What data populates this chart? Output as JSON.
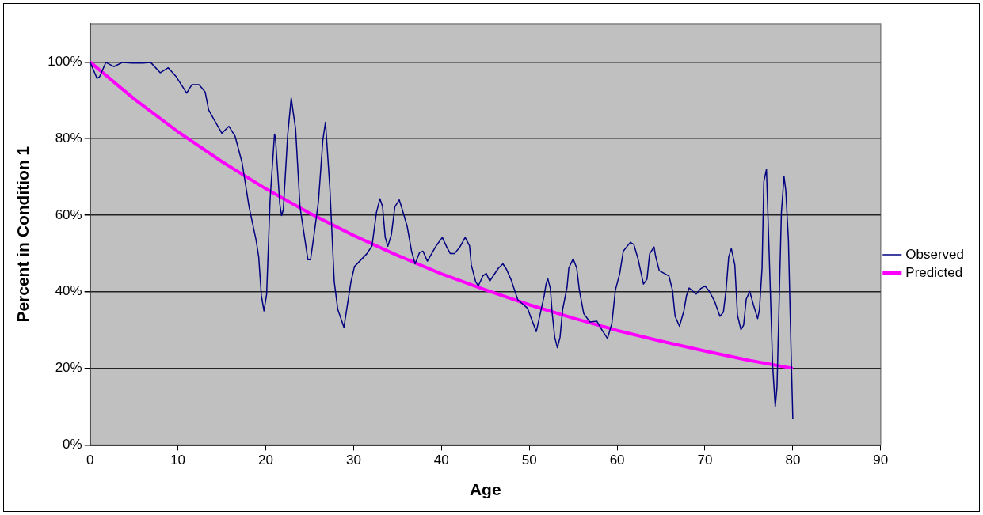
{
  "chart_data": {
    "type": "line",
    "xlabel": "Age",
    "ylabel": "Percent in Condition 1",
    "xlim": [
      0,
      90
    ],
    "xticks": [
      0,
      10,
      20,
      30,
      40,
      50,
      60,
      70,
      80,
      90
    ],
    "ylim": [
      0,
      110
    ],
    "yticks": [
      {
        "value": 0,
        "label": "0%"
      },
      {
        "value": 20,
        "label": "20%"
      },
      {
        "value": 40,
        "label": "40%"
      },
      {
        "value": 60,
        "label": "60%"
      },
      {
        "value": 80,
        "label": "80%"
      },
      {
        "value": 100,
        "label": "100%"
      }
    ],
    "grid": "y",
    "legend": "right",
    "marker": "none",
    "line_style": "solid",
    "series": [
      {
        "name": "Observed",
        "color": "#000080",
        "x": [
          0,
          0.8,
          1.1,
          1.8,
          2.7,
          3.7,
          4.8,
          6.0,
          6.9,
          8.0,
          8.9,
          9.8,
          11.0,
          11.6,
          12.4,
          13.1,
          13.5,
          14.2,
          15.0,
          15.8,
          16.5,
          17.3,
          18.1,
          18.9,
          19.2,
          19.5,
          19.8,
          20.1,
          20.5,
          21.0,
          21.1,
          21.6,
          21.8,
          22.0,
          22.5,
          22.9,
          23.4,
          23.9,
          24.8,
          25.1,
          25.5,
          26.0,
          26.5,
          26.8,
          27.3,
          27.8,
          28.2,
          28.9,
          29.7,
          30.1,
          31.5,
          32.1,
          32.6,
          33.0,
          33.3,
          33.6,
          33.9,
          34.3,
          34.7,
          35.2,
          35.5,
          36.1,
          36.6,
          37.0,
          37.5,
          37.9,
          38.4,
          39.4,
          40.1,
          40.6,
          41.0,
          41.5,
          42.1,
          42.7,
          43.2,
          43.4,
          43.9,
          44.2,
          44.7,
          45.1,
          45.5,
          46.5,
          47.0,
          47.4,
          47.9,
          48.7,
          49.8,
          50.2,
          50.8,
          51.7,
          51.9,
          52.1,
          52.4,
          52.6,
          52.9,
          53.2,
          53.5,
          53.8,
          54.3,
          54.5,
          55.0,
          55.4,
          55.7,
          56.2,
          56.9,
          57.7,
          58.2,
          58.9,
          59.4,
          59.8,
          60.3,
          60.7,
          61.5,
          61.9,
          62.4,
          63.0,
          63.4,
          63.7,
          64.2,
          64.4,
          64.8,
          65.9,
          66.3,
          66.6,
          67.1,
          67.6,
          67.9,
          68.2,
          69.0,
          69.5,
          70.0,
          70.5,
          71.1,
          71.7,
          72.1,
          72.4,
          72.7,
          73.0,
          73.4,
          73.7,
          74.1,
          74.4,
          74.7,
          75.1,
          75.5,
          76.0,
          76.2,
          76.5,
          76.7,
          77.0,
          77.3,
          77.7,
          78.0,
          78.2,
          78.5,
          78.7,
          79.0,
          79.2,
          79.5,
          79.8,
          80.0
        ],
        "values": [
          100,
          95.7,
          96.2,
          99.9,
          98.8,
          99.9,
          99.7,
          99.7,
          99.9,
          97.2,
          98.5,
          96.2,
          91.9,
          94.1,
          94.1,
          92.2,
          87.5,
          84.6,
          81.4,
          83.2,
          80.7,
          73.8,
          62.2,
          53.5,
          49.1,
          39.0,
          35.0,
          39.3,
          64.3,
          81.2,
          80.3,
          62.9,
          59.9,
          61.4,
          81.0,
          90.6,
          82.5,
          62.2,
          48.4,
          48.4,
          54.9,
          63.6,
          79.6,
          84.3,
          67.0,
          42.6,
          35.4,
          30.7,
          42.6,
          46.6,
          49.9,
          52.0,
          60.7,
          64.3,
          62.2,
          54.2,
          51.9,
          54.9,
          62.2,
          64.0,
          61.8,
          57.1,
          50.6,
          47.3,
          50.2,
          50.6,
          48.0,
          52.0,
          54.2,
          51.7,
          50.0,
          50.0,
          51.7,
          54.2,
          52.0,
          47.0,
          42.6,
          41.5,
          44.1,
          44.8,
          42.8,
          46.2,
          47.3,
          45.9,
          43.3,
          37.9,
          35.7,
          33.2,
          29.6,
          39.0,
          41.9,
          43.5,
          40.8,
          34.6,
          28.1,
          25.4,
          28.1,
          35.4,
          41.2,
          46.2,
          48.6,
          46.2,
          40.4,
          34.3,
          32.1,
          32.3,
          30.3,
          27.8,
          31.7,
          40.4,
          44.8,
          50.6,
          52.9,
          52.4,
          48.4,
          42.0,
          43.3,
          49.9,
          51.7,
          49.1,
          45.5,
          44.1,
          40.4,
          33.6,
          31.0,
          35.0,
          39.0,
          41.0,
          39.4,
          40.8,
          41.5,
          40.1,
          37.5,
          33.6,
          34.7,
          40.4,
          49.1,
          51.3,
          47.0,
          33.9,
          30.1,
          31.3,
          38.1,
          40.1,
          36.7,
          33.0,
          35.4,
          46.2,
          68.7,
          72.0,
          50.6,
          20.9,
          10.0,
          15.1,
          42.6,
          60.7,
          70.1,
          66.5,
          53.5,
          24.5,
          6.7
        ]
      },
      {
        "name": "Predicted",
        "color": "#ff00ff",
        "x": [
          0,
          5,
          10,
          15,
          20,
          25,
          30,
          35,
          40,
          45,
          50,
          55,
          60,
          65,
          70,
          75,
          80
        ],
        "values": [
          100,
          90.4,
          81.8,
          74.0,
          66.9,
          60.5,
          54.7,
          49.5,
          44.7,
          40.5,
          36.6,
          33.1,
          29.9,
          27.1,
          24.5,
          22.1,
          20.0
        ]
      }
    ]
  }
}
